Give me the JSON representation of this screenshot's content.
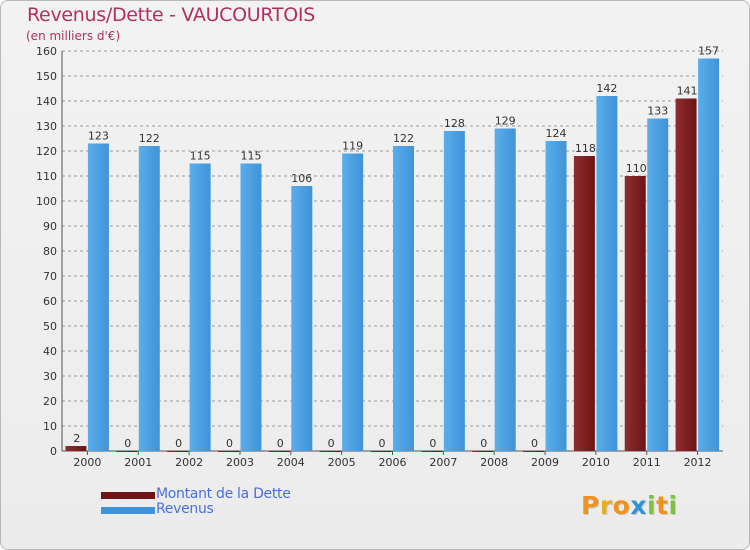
{
  "title": "Revenus/Dette - VAUCOURTOIS",
  "subtitle": "(en milliers d'€)",
  "colors": {
    "dette": "#6e1414",
    "dette_light": "#8e2d31",
    "revenus": "#3f93d8",
    "revenus_light": "#5aaeea",
    "grid": "#9a9a9a",
    "text": "#333333",
    "title": "#b03060"
  },
  "chart_data": {
    "type": "bar",
    "title": "Revenus/Dette - VAUCOURTOIS",
    "ylabel": "(en milliers d'€)",
    "categories": [
      "2000",
      "2001",
      "2002",
      "2003",
      "2004",
      "2005",
      "2006",
      "2007",
      "2008",
      "2009",
      "2010",
      "2011",
      "2012"
    ],
    "series": [
      {
        "name": "Montant de la Dette",
        "values": [
          2,
          0,
          0,
          0,
          0,
          0,
          0,
          0,
          0,
          0,
          118,
          110,
          141
        ]
      },
      {
        "name": "Revenus",
        "values": [
          123,
          122,
          115,
          115,
          106,
          119,
          122,
          128,
          129,
          124,
          142,
          133,
          157
        ]
      }
    ],
    "ylim": [
      0,
      160
    ],
    "yticks": [
      0,
      10,
      20,
      30,
      40,
      50,
      60,
      70,
      80,
      90,
      100,
      110,
      120,
      130,
      140,
      150,
      160
    ],
    "grid": true,
    "legend": "bottom-left"
  },
  "legend": {
    "dette_label": "Montant de la Dette",
    "revenus_label": "Revenus"
  },
  "logo": {
    "letters": [
      "P",
      "r",
      "o",
      "x",
      "i",
      "t",
      "i"
    ],
    "colors": [
      "#f0921e",
      "#e8b020",
      "#f0921e",
      "#2d93dc",
      "#7fc242",
      "#f0921e",
      "#7fc242"
    ]
  }
}
